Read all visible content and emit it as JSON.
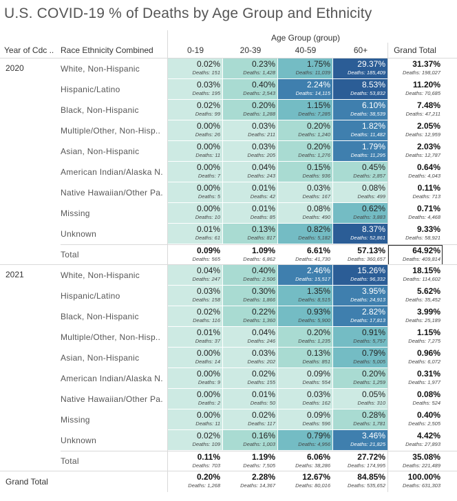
{
  "title": "U.S. COVID-19 % of Deaths by Age Group and Ethnicity",
  "headers": {
    "year": "Year of Cdc ..",
    "race": "Race Ethnicity Combined",
    "age_group": "Age Group (group)",
    "grand_total": "Grand Total"
  },
  "colors": {
    "lightest": "#cdeae3",
    "light": "#a9dbd2",
    "mid": "#74bcc4",
    "dark": "#3f7fae",
    "darkest": "#2b5d96"
  },
  "chart_data": {
    "type": "table",
    "title": "U.S. COVID-19 % of Deaths by Age Group and Ethnicity",
    "columns": [
      "0-19",
      "20-39",
      "40-59",
      "60+"
    ],
    "years": [
      {
        "year": "2020",
        "rows": [
          {
            "race": "White, Non-Hispanic",
            "pct": [
              "0.02%",
              "0.23%",
              "1.75%",
              "29.37%"
            ],
            "deaths": [
              "Deaths: 151",
              "Deaths: 1,428",
              "Deaths: 11,039",
              "Deaths: 185,409"
            ],
            "total_pct": "31.37%",
            "total_deaths": "Deaths: 198,027"
          },
          {
            "race": "Hispanic/Latino",
            "pct": [
              "0.03%",
              "0.40%",
              "2.24%",
              "8.53%"
            ],
            "deaths": [
              "Deaths: 195",
              "Deaths: 2,543",
              "Deaths: 14,115",
              "Deaths: 53,832"
            ],
            "total_pct": "11.20%",
            "total_deaths": "Deaths: 70,685"
          },
          {
            "race": "Black, Non-Hispanic",
            "pct": [
              "0.02%",
              "0.20%",
              "1.15%",
              "6.10%"
            ],
            "deaths": [
              "Deaths: 99",
              "Deaths: 1,288",
              "Deaths: 7,285",
              "Deaths: 38,539"
            ],
            "total_pct": "7.48%",
            "total_deaths": "Deaths: 47,211"
          },
          {
            "race": "Multiple/Other, Non-Hisp..",
            "pct": [
              "0.00%",
              "0.03%",
              "0.20%",
              "1.82%"
            ],
            "deaths": [
              "Deaths: 26",
              "Deaths: 211",
              "Deaths: 1,240",
              "Deaths: 11,482"
            ],
            "total_pct": "2.05%",
            "total_deaths": "Deaths: 12,959"
          },
          {
            "race": "Asian, Non-Hispanic",
            "pct": [
              "0.00%",
              "0.03%",
              "0.20%",
              "1.79%"
            ],
            "deaths": [
              "Deaths: 11",
              "Deaths: 205",
              "Deaths: 1,276",
              "Deaths: 11,295"
            ],
            "total_pct": "2.03%",
            "total_deaths": "Deaths: 12,787"
          },
          {
            "race": "American Indian/Alaska N..",
            "pct": [
              "0.00%",
              "0.04%",
              "0.15%",
              "0.45%"
            ],
            "deaths": [
              "Deaths: 7",
              "Deaths: 243",
              "Deaths: 936",
              "Deaths: 2,857"
            ],
            "total_pct": "0.64%",
            "total_deaths": "Deaths: 4,043"
          },
          {
            "race": "Native Hawaiian/Other Pa..",
            "pct": [
              "0.00%",
              "0.01%",
              "0.03%",
              "0.08%"
            ],
            "deaths": [
              "Deaths: 5",
              "Deaths: 42",
              "Deaths: 167",
              "Deaths: 499"
            ],
            "total_pct": "0.11%",
            "total_deaths": "Deaths: 713"
          },
          {
            "race": "Missing",
            "pct": [
              "0.00%",
              "0.01%",
              "0.08%",
              "0.62%"
            ],
            "deaths": [
              "Deaths: 10",
              "Deaths: 85",
              "Deaths: 490",
              "Deaths: 3,883"
            ],
            "total_pct": "0.71%",
            "total_deaths": "Deaths: 4,468"
          },
          {
            "race": "Unknown",
            "pct": [
              "0.01%",
              "0.13%",
              "0.82%",
              "8.37%"
            ],
            "deaths": [
              "Deaths: 61",
              "Deaths: 817",
              "Deaths: 5,182",
              "Deaths: 52,861"
            ],
            "total_pct": "9.33%",
            "total_deaths": "Deaths: 58,921"
          }
        ],
        "total": {
          "label": "Total",
          "pct": [
            "0.09%",
            "1.09%",
            "6.61%",
            "57.13%"
          ],
          "deaths": [
            "Deaths: 565",
            "Deaths: 6,862",
            "Deaths: 41,730",
            "Deaths: 360,657"
          ],
          "total_pct": "64.92%",
          "total_deaths": "Deaths: 409,814"
        }
      },
      {
        "year": "2021",
        "rows": [
          {
            "race": "White, Non-Hispanic",
            "pct": [
              "0.04%",
              "0.40%",
              "2.46%",
              "15.26%"
            ],
            "deaths": [
              "Deaths: 247",
              "Deaths: 2,506",
              "Deaths: 15,517",
              "Deaths: 96,332"
            ],
            "total_pct": "18.15%",
            "total_deaths": "Deaths: 114,602"
          },
          {
            "race": "Hispanic/Latino",
            "pct": [
              "0.03%",
              "0.30%",
              "1.35%",
              "3.95%"
            ],
            "deaths": [
              "Deaths: 158",
              "Deaths: 1,866",
              "Deaths: 8,515",
              "Deaths: 24,913"
            ],
            "total_pct": "5.62%",
            "total_deaths": "Deaths: 35,452"
          },
          {
            "race": "Black, Non-Hispanic",
            "pct": [
              "0.02%",
              "0.22%",
              "0.93%",
              "2.82%"
            ],
            "deaths": [
              "Deaths: 116",
              "Deaths: 1,360",
              "Deaths: 5,900",
              "Deaths: 17,813"
            ],
            "total_pct": "3.99%",
            "total_deaths": "Deaths: 25,189"
          },
          {
            "race": "Multiple/Other, Non-Hisp..",
            "pct": [
              "0.01%",
              "0.04%",
              "0.20%",
              "0.91%"
            ],
            "deaths": [
              "Deaths: 37",
              "Deaths: 246",
              "Deaths: 1,235",
              "Deaths: 5,757"
            ],
            "total_pct": "1.15%",
            "total_deaths": "Deaths: 7,275"
          },
          {
            "race": "Asian, Non-Hispanic",
            "pct": [
              "0.00%",
              "0.03%",
              "0.13%",
              "0.79%"
            ],
            "deaths": [
              "Deaths: 14",
              "Deaths: 202",
              "Deaths: 851",
              "Deaths: 5,005"
            ],
            "total_pct": "0.96%",
            "total_deaths": "Deaths: 6,072"
          },
          {
            "race": "American Indian/Alaska N..",
            "pct": [
              "0.00%",
              "0.02%",
              "0.09%",
              "0.20%"
            ],
            "deaths": [
              "Deaths: 9",
              "Deaths: 155",
              "Deaths: 554",
              "Deaths: 1,259"
            ],
            "total_pct": "0.31%",
            "total_deaths": "Deaths: 1,977"
          },
          {
            "race": "Native Hawaiian/Other Pa..",
            "pct": [
              "0.00%",
              "0.01%",
              "0.03%",
              "0.05%"
            ],
            "deaths": [
              "Deaths: 2",
              "Deaths: 50",
              "Deaths: 162",
              "Deaths: 310"
            ],
            "total_pct": "0.08%",
            "total_deaths": "Deaths: 524"
          },
          {
            "race": "Missing",
            "pct": [
              "0.00%",
              "0.02%",
              "0.09%",
              "0.28%"
            ],
            "deaths": [
              "Deaths: 11",
              "Deaths: 117",
              "Deaths: 596",
              "Deaths: 1,781"
            ],
            "total_pct": "0.40%",
            "total_deaths": "Deaths: 2,505"
          },
          {
            "race": "Unknown",
            "pct": [
              "0.02%",
              "0.16%",
              "0.79%",
              "3.46%"
            ],
            "deaths": [
              "Deaths: 109",
              "Deaths: 1,003",
              "Deaths: 4,956",
              "Deaths: 21,825"
            ],
            "total_pct": "4.42%",
            "total_deaths": "Deaths: 27,893"
          }
        ],
        "total": {
          "label": "Total",
          "pct": [
            "0.11%",
            "1.19%",
            "6.06%",
            "27.72%"
          ],
          "deaths": [
            "Deaths: 703",
            "Deaths: 7,505",
            "Deaths: 38,286",
            "Deaths: 174,995"
          ],
          "total_pct": "35.08%",
          "total_deaths": "Deaths: 221,489"
        }
      }
    ],
    "grand_total": {
      "label": "Grand Total",
      "pct": [
        "0.20%",
        "2.28%",
        "12.67%",
        "84.85%"
      ],
      "deaths": [
        "Deaths: 1,268",
        "Deaths: 14,367",
        "Deaths: 80,016",
        "Deaths: 535,652"
      ],
      "total_pct": "100.00%",
      "total_deaths": "Deaths: 631,303"
    }
  }
}
